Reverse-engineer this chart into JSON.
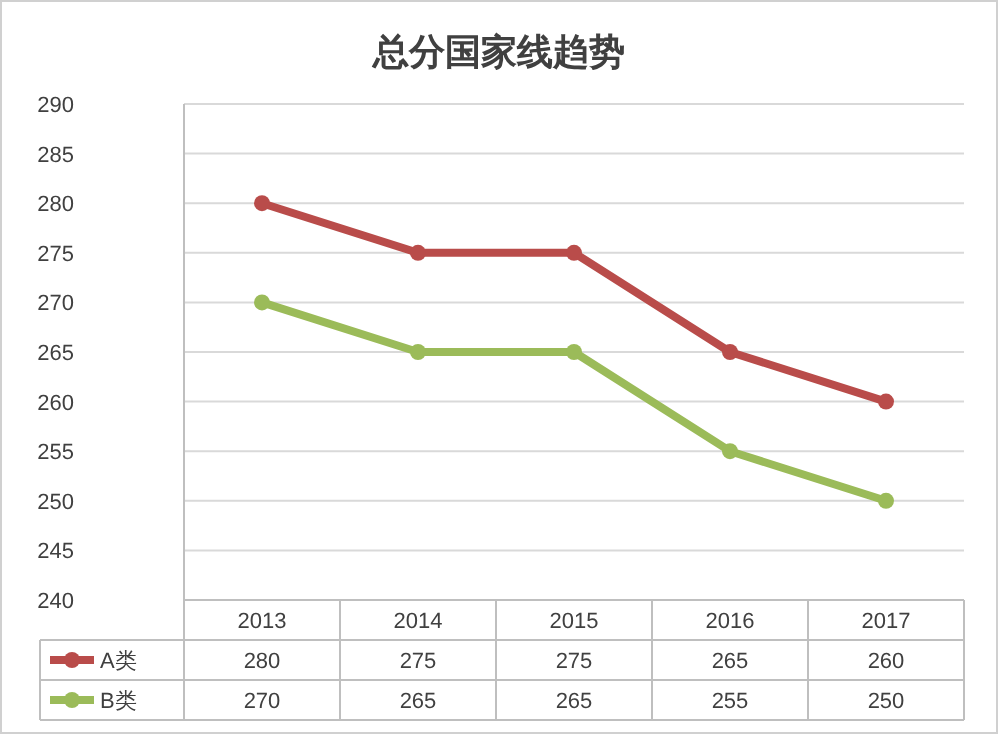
{
  "chart_data": {
    "type": "line",
    "title": "总分国家线趋势",
    "categories": [
      "2013",
      "2014",
      "2015",
      "2016",
      "2017"
    ],
    "series": [
      {
        "name": "A类",
        "color": "#b94c4a",
        "values": [
          280,
          275,
          275,
          265,
          260
        ]
      },
      {
        "name": "B类",
        "color": "#9bbb59",
        "values": [
          270,
          265,
          265,
          255,
          250
        ]
      }
    ],
    "ylim": [
      240,
      290
    ],
    "yticks": [
      240,
      245,
      250,
      255,
      260,
      265,
      270,
      275,
      280,
      285,
      290
    ],
    "grid": "y",
    "marker": "circle",
    "line_style": "solid",
    "data_labels": true,
    "legend": "bottom left"
  }
}
